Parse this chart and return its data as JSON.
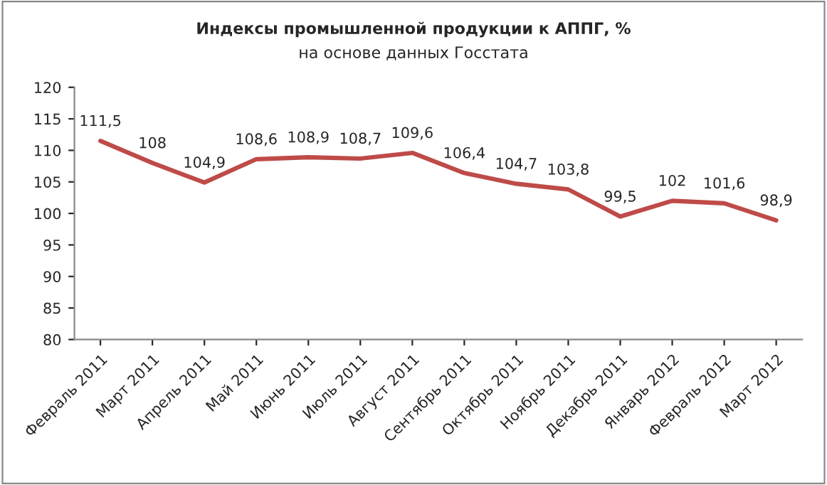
{
  "chart_data": {
    "type": "line",
    "title": "Индексы промышленной продукции к АППГ, %",
    "subtitle": "на основе данных Госстата",
    "categories": [
      "Февраль 2011",
      "Март 2011",
      "Апрель 2011",
      "Май 2011",
      "Июнь 2011",
      "Июль 2011",
      "Август 2011",
      "Сентябрь 2011",
      "Октябрь 2011",
      "Ноябрь 2011",
      "Декабрь 2011",
      "Январь 2012",
      "Февраль 2012",
      "Март 2012"
    ],
    "series": [
      {
        "color": "#be4b48",
        "values": [
          111.5,
          108,
          104.9,
          108.6,
          108.9,
          108.7,
          109.6,
          106.4,
          104.7,
          103.8,
          99.5,
          102,
          101.6,
          98.9
        ],
        "value_labels": [
          "111,5",
          "108",
          "104,9",
          "108,6",
          "108,9",
          "108,7",
          "109,6",
          "106,4",
          "104,7",
          "103,8",
          "99,5",
          "102",
          "101,6",
          "98,9"
        ]
      }
    ],
    "ylim": [
      80,
      120
    ],
    "yticks": [
      80,
      85,
      90,
      95,
      100,
      105,
      110,
      115,
      120
    ],
    "marker": "none",
    "line_style": "solid"
  }
}
